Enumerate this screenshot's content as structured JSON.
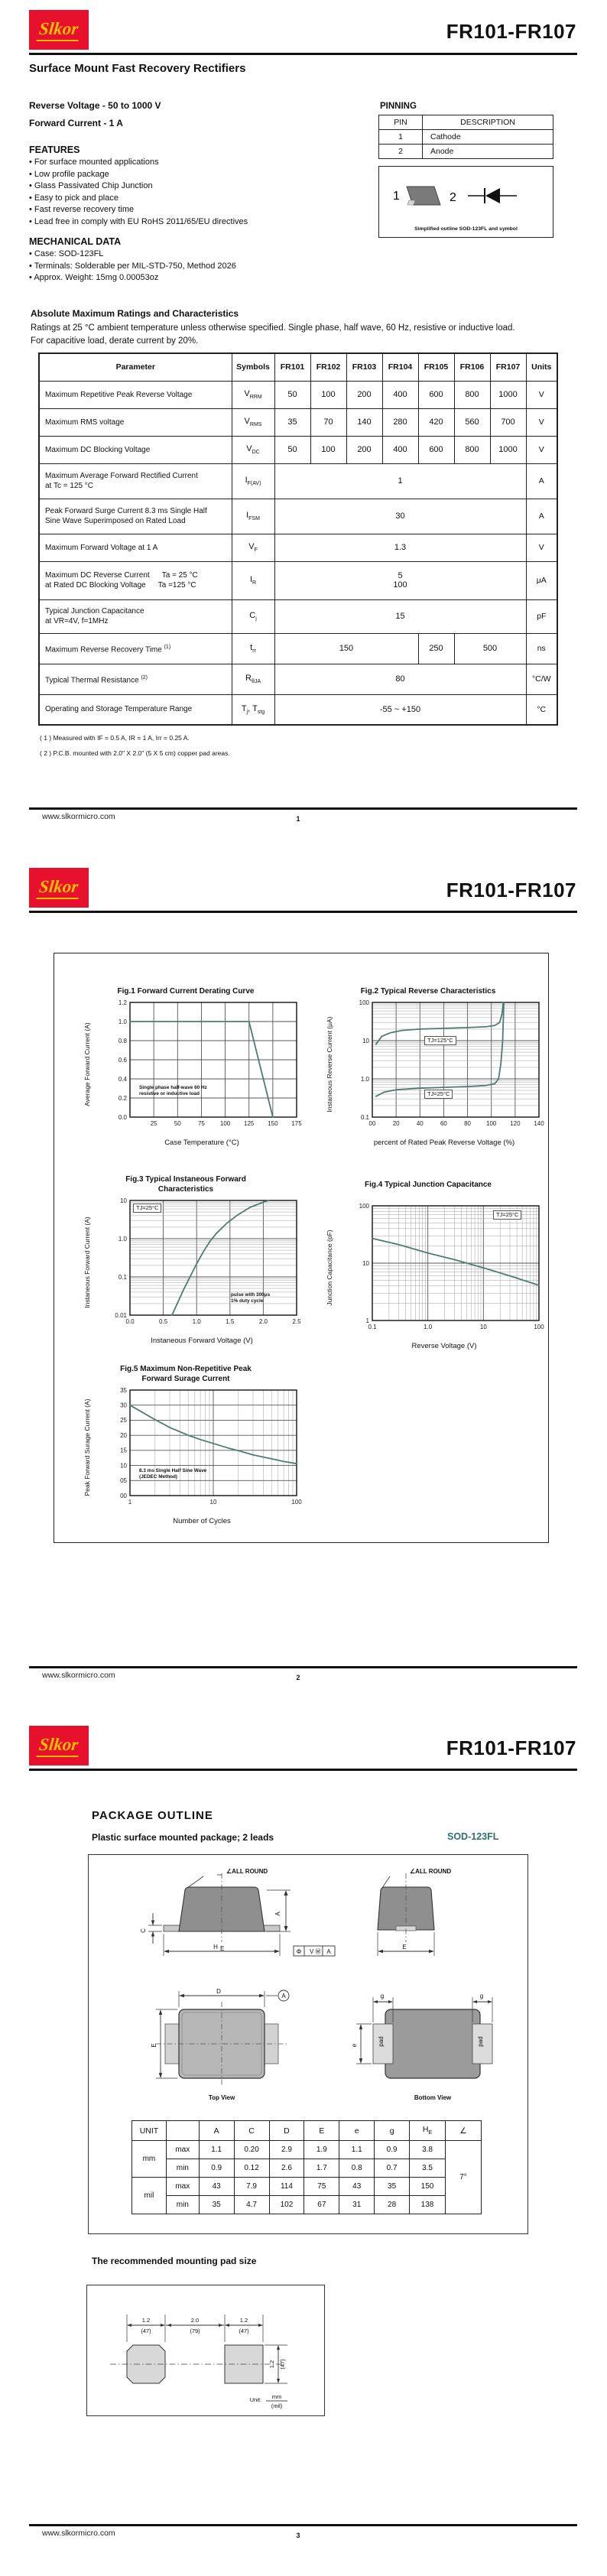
{
  "colors": {
    "brand-red": "#e8112d",
    "brand-gold": "#f2be00",
    "accent-teal": "#2f6f6f",
    "chart-line": "#4d7c74"
  },
  "doc": {
    "brand": "Slkor",
    "part": "FR101-FR107",
    "website": "www.slkormicro.com",
    "subtitle": "Surface Mount Fast Recovery Rectifiers",
    "reverse_voltage": "Reverse Voltage - 50 to 1000 V",
    "forward_current": "Forward Current - 1 A"
  },
  "footer": {
    "pages": [
      "1",
      "2",
      "3"
    ]
  },
  "page1": {
    "pinning": {
      "title": "PINNING",
      "col_pin": "PIN",
      "col_desc": "DESCRIPTION",
      "rows": [
        [
          "1",
          "Cathode"
        ],
        [
          "2",
          "Anode"
        ]
      ],
      "pin1": "1",
      "pin2": "2",
      "caption": "Simplified outline SOD-123FL and symbol"
    },
    "features": {
      "title": "FEATURES",
      "items": [
        "For surface mounted applications",
        "Low profile package",
        "Glass Passivated Chip Junction",
        "Easy to pick and place",
        "Fast reverse recovery time",
        "Lead free in comply with EU RoHS 2011/65/EU directives"
      ]
    },
    "mechanical": {
      "title": "MECHANICAL DATA",
      "items": [
        "Case: SOD-123FL",
        "Terminals: Solderable per MIL-STD-750, Method 2026",
        "Approx. Weight:  15mg   0.00053oz"
      ]
    },
    "ratings": {
      "title": "Absolute Maximum Ratings and Characteristics",
      "desc1": "Ratings at 25 °C ambient temperature unless otherwise specified. Single phase, half wave, 60 Hz, resistive or inductive load.",
      "desc2": "For capacitive load, derate current by 20%.",
      "headers": [
        "Parameter",
        "Symbols",
        "FR101",
        "FR102",
        "FR103",
        "FR104",
        "FR105",
        "FR106",
        "FR107",
        "Units"
      ],
      "rows": [
        {
          "p": "Maximum Repetitive Peak Reverse Voltage",
          "s": "V",
          "ss": "RRM",
          "v": [
            "50",
            "100",
            "200",
            "400",
            "600",
            "800",
            "1000"
          ],
          "u": "V"
        },
        {
          "p": "Maximum RMS voltage",
          "s": "V",
          "ss": "RMS",
          "v": [
            "35",
            "70",
            "140",
            "280",
            "420",
            "560",
            "700"
          ],
          "u": "V"
        },
        {
          "p": "Maximum DC Blocking Voltage",
          "s": "V",
          "ss": "DC",
          "v": [
            "50",
            "100",
            "200",
            "400",
            "600",
            "800",
            "1000"
          ],
          "u": "V"
        },
        {
          "p": "Maximum Average Forward Rectified Current",
          "p2": "at Tc = 125 °C",
          "s": "I",
          "ss": "F(AV)",
          "v1": "1",
          "u": "A"
        },
        {
          "p": "Peak Forward Surge Current 8.3 ms Single Half",
          "p2": "Sine Wave Superimposed on Rated Load",
          "s": "I",
          "ss": "FSM",
          "v1": "30",
          "u": "A"
        },
        {
          "p": "Maximum  Forward Voltage at 1 A",
          "s": "V",
          "ss": "F",
          "v1": "1.3",
          "u": "V"
        },
        {
          "p": "Maximum DC Reverse Current",
          "pc": "Ta = 25 °C",
          "p2": "at Rated DC Blocking Voltage",
          "p2c": "Ta =125 °C",
          "s": "I",
          "ss": "R",
          "v1": "5",
          "v2": "100",
          "u": "μA"
        },
        {
          "p": "Typical Junction Capacitance",
          "p2": "at VR=4V, f=1MHz",
          "s": "C",
          "ss": "j",
          "v1": "15",
          "u": "pF"
        },
        {
          "p": "Maximum Reverse Recovery Time",
          "sup": "(1)",
          "s": "t",
          "ss": "rr",
          "va": "150",
          "vb": "250",
          "vc": "500",
          "u": "ns"
        },
        {
          "p": "Typical Thermal Resistance",
          "sup": "(2)",
          "s": "R",
          "ss": "θJA",
          "v1": "80",
          "u": "°C/W"
        },
        {
          "p": "Operating and Storage Temperature Range",
          "s": "T",
          "ss": "j",
          "s2": ", T",
          "ss2": "stg",
          "v1": "-55 ~ +150",
          "u": "°C"
        }
      ],
      "notes": [
        "( 1 ) Measured with IF = 0.5 A, IR = 1 A, Irr = 0.25 A.",
        "( 2 ) P.C.B. mounted with 2.0\" X 2.0\" (5 X 5 cm) copper pad areas."
      ]
    }
  },
  "figures": {
    "fig1": {
      "title": "Fig.1  Forward Current Derating Curve",
      "ylabel": "Average Forward Current  (A)",
      "xlabel": "Case Temperature (°C)",
      "note1": "Single phase half-wave 60 Hz",
      "note2": "resistive or inductive load",
      "plot": {
        "xmin": 0,
        "xmax": 175,
        "ymin": 0,
        "ymax": 1.2,
        "xticks": [
          [
            25,
            "25"
          ],
          [
            50,
            "50"
          ],
          [
            75,
            "75"
          ],
          [
            100,
            "100"
          ],
          [
            125,
            "125"
          ],
          [
            150,
            "150"
          ],
          [
            175,
            "175"
          ]
        ],
        "yticks": [
          [
            0,
            "0.0"
          ],
          [
            0.2,
            "0.2"
          ],
          [
            0.4,
            "0.4"
          ],
          [
            0.6,
            "0.6"
          ],
          [
            0.8,
            "0.8"
          ],
          [
            1.0,
            "1.0"
          ],
          [
            1.2,
            "1.2"
          ]
        ],
        "series": [
          [
            [
              0,
              1
            ],
            [
              125,
              1
            ],
            [
              150,
              0
            ]
          ]
        ]
      }
    },
    "fig2": {
      "title": "Fig.2  Typical Reverse Characteristics",
      "ylabel": "Instaneous Reverse Current (μA)",
      "xlabel": "percent of Rated  Peak Reverse Voltage (%)",
      "lab125": "TJ=125°C",
      "lab25": "TJ=25°C",
      "plot": {
        "xmin": 0,
        "xmax": 140,
        "ylog": true,
        "ymin": 0.1,
        "ymax": 100,
        "xticks": [
          [
            0,
            "00"
          ],
          [
            20,
            "20"
          ],
          [
            40,
            "40"
          ],
          [
            60,
            "60"
          ],
          [
            80,
            "80"
          ],
          [
            100,
            "100"
          ],
          [
            120,
            "120"
          ],
          [
            140,
            "140"
          ]
        ],
        "yticks": [
          [
            0.1,
            "0.1"
          ],
          [
            1,
            "1.0"
          ],
          [
            10,
            "10"
          ],
          [
            100,
            "100"
          ]
        ],
        "series": [
          [
            [
              3,
              8
            ],
            [
              8,
              13
            ],
            [
              15,
              16
            ],
            [
              25,
              18.5
            ],
            [
              40,
              20
            ],
            [
              60,
              21
            ],
            [
              80,
              22
            ],
            [
              95,
              23
            ],
            [
              103,
              25
            ],
            [
              107,
              30
            ],
            [
              109,
              50
            ],
            [
              110,
              100
            ]
          ],
          [
            [
              3,
              0.35
            ],
            [
              10,
              0.45
            ],
            [
              20,
              0.52
            ],
            [
              40,
              0.57
            ],
            [
              60,
              0.6
            ],
            [
              80,
              0.63
            ],
            [
              95,
              0.67
            ],
            [
              103,
              0.75
            ],
            [
              106,
              1
            ],
            [
              108,
              2.5
            ],
            [
              109.5,
              10
            ],
            [
              110.5,
              100
            ]
          ]
        ]
      }
    },
    "fig3": {
      "title": "Fig.3  Typical Instaneous Forward",
      "title2": "Characteristics",
      "ylabel": "Instaneous Forward Current (A)",
      "xlabel": "Instaneous Forward Voltage (V)",
      "lab25": "TJ=25°C",
      "note1": "pulse with 300μs",
      "note2": "1% duty cycle",
      "plot": {
        "xmin": 0,
        "xmax": 2.5,
        "ylog": true,
        "ymin": 0.01,
        "ymax": 10,
        "xticks": [
          [
            0,
            "0.0"
          ],
          [
            0.5,
            "0.5"
          ],
          [
            1,
            "1.0"
          ],
          [
            1.5,
            "1.5"
          ],
          [
            2,
            "2.0"
          ],
          [
            2.5,
            "2.5"
          ]
        ],
        "yticks": [
          [
            0.01,
            "0.01"
          ],
          [
            0.1,
            "0.1"
          ],
          [
            1,
            "1.0"
          ],
          [
            10,
            "10"
          ]
        ],
        "series": [
          [
            [
              0.63,
              0.01
            ],
            [
              0.72,
              0.022
            ],
            [
              0.8,
              0.045
            ],
            [
              0.9,
              0.1
            ],
            [
              1.0,
              0.22
            ],
            [
              1.1,
              0.45
            ],
            [
              1.2,
              0.85
            ],
            [
              1.3,
              1.4
            ],
            [
              1.45,
              2.5
            ],
            [
              1.6,
              4
            ],
            [
              1.8,
              6.6
            ],
            [
              2.0,
              9
            ],
            [
              2.08,
              10
            ]
          ]
        ]
      }
    },
    "fig4": {
      "title": "Fig.4  Typical Junction Capacitance",
      "ylabel": "Junction Capacitance (pF)",
      "xlabel": "Reverse  Voltage (V)",
      "lab25": "TJ=25°C",
      "plot": {
        "xlog": true,
        "xmin": 0.1,
        "xmax": 100,
        "ylog": true,
        "ymin": 1,
        "ymax": 100,
        "xticks": [
          [
            0.1,
            "0.1"
          ],
          [
            1,
            "1.0"
          ],
          [
            10,
            "10"
          ],
          [
            100,
            "100"
          ]
        ],
        "yticks": [
          [
            1,
            "1"
          ],
          [
            10,
            "10"
          ],
          [
            100,
            "100"
          ]
        ],
        "series": [
          [
            [
              0.1,
              27
            ],
            [
              0.3,
              21
            ],
            [
              1,
              15
            ],
            [
              3,
              11.5
            ],
            [
              10,
              8.3
            ],
            [
              30,
              6
            ],
            [
              100,
              4.1
            ]
          ]
        ]
      }
    },
    "fig5": {
      "title": "Fig.5  Maximum Non-Repetitive Peak",
      "title2": "Forward Surage Current",
      "ylabel": "Peak Forward Surage Current (A)",
      "xlabel": "Number of Cycles",
      "note1": "8.3 ms Single Half Sine Wave",
      "note2": "(JEDEC Method)",
      "plot": {
        "xlog": true,
        "xmin": 1,
        "xmax": 100,
        "ymin": 0,
        "ymax": 35,
        "xticks": [
          [
            1,
            "1"
          ],
          [
            10,
            "10"
          ],
          [
            100,
            "100"
          ]
        ],
        "yticks": [
          [
            0,
            "00"
          ],
          [
            5,
            "05"
          ],
          [
            10,
            "10"
          ],
          [
            15,
            "15"
          ],
          [
            20,
            "20"
          ],
          [
            25,
            "25"
          ],
          [
            30,
            "30"
          ],
          [
            35,
            "35"
          ]
        ],
        "series": [
          [
            [
              1,
              30
            ],
            [
              1.5,
              27.2
            ],
            [
              2,
              25.2
            ],
            [
              3,
              22.6
            ],
            [
              5,
              20
            ],
            [
              7,
              18.6
            ],
            [
              10,
              17.3
            ],
            [
              15,
              15.8
            ],
            [
              20,
              14.9
            ],
            [
              30,
              13.5
            ],
            [
              50,
              12.2
            ],
            [
              70,
              11.3
            ],
            [
              100,
              10.6
            ]
          ]
        ]
      }
    }
  },
  "pkg": {
    "title": "PACKAGE  OUTLINE",
    "subtitle": "Plastic surface mounted package; 2 leads",
    "case": "SOD-123FL",
    "outline": {
      "all_round": "∠ALL ROUND",
      "dim_a": "A",
      "dim_c": "C",
      "he_main": "H",
      "he_sub": "E",
      "dim_e": "E",
      "dim_d": "D",
      "datum": "A",
      "dim_e_side": "E",
      "dim_g": "g",
      "dim_e_small": "e",
      "pad_label": "pad",
      "fcf1": "Φ",
      "fcf2": "V",
      "fcf2b": "Ⓜ",
      "fcf3": "A",
      "top_view": "Top View",
      "bottom_view": "Bottom View"
    },
    "dim": {
      "unit_hdr": "UNIT",
      "headers": [
        "A",
        "C",
        "D",
        "E",
        "e",
        "g"
      ],
      "h_main": "H",
      "h_sub": "E",
      "angle_hdr": "∠",
      "unit_mm": "mm",
      "unit_mil": "mil",
      "angle": "7°",
      "rows": [
        {
          "label": "max",
          "vals": [
            "1.1",
            "0.20",
            "2.9",
            "1.9",
            "1.1",
            "0.9",
            "3.8"
          ]
        },
        {
          "label": "min",
          "vals": [
            "0.9",
            "0.12",
            "2.6",
            "1.7",
            "0.8",
            "0.7",
            "3.5"
          ]
        },
        {
          "label": "max",
          "vals": [
            "43",
            "7.9",
            "114",
            "75",
            "43",
            "35",
            "150"
          ]
        },
        {
          "label": "min",
          "vals": [
            "35",
            "4.7",
            "102",
            "67",
            "31",
            "28",
            "138"
          ]
        }
      ]
    },
    "pad_layout": {
      "heading": "The recommended mounting pad size",
      "w1": "1.2",
      "w1m": "(47)",
      "gap": "2.0",
      "gapm": "(79)",
      "w2": "1.2",
      "w2m": "(47)",
      "h": "1.2",
      "hm": "(47)",
      "unit_label": "Unit:",
      "unit_top": "mm",
      "unit_bottom": "(mil)"
    }
  }
}
